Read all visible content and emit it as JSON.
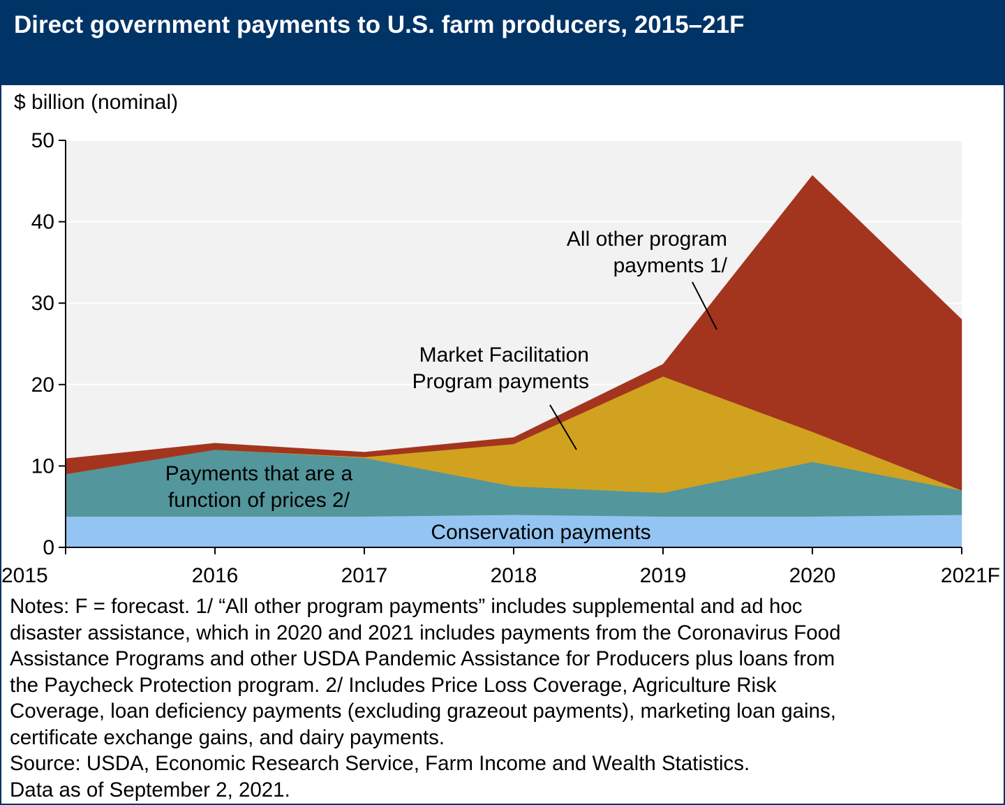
{
  "header": {
    "title": "Direct government payments to U.S. farm producers, 2015–21F"
  },
  "colors": {
    "header_bg": "#003366",
    "plot_bg": "#f2f2f2",
    "conservation": "#94c4f2",
    "price_function": "#53969c",
    "market_facilitation": "#d1a21f",
    "all_other": "#a3351f"
  },
  "chart_data": {
    "type": "area",
    "stacked": true,
    "ylabel": "$ billion (nominal)",
    "ylim": [
      0,
      50
    ],
    "yticks": [
      0,
      10,
      20,
      30,
      40,
      50
    ],
    "categories": [
      "2015",
      "2016",
      "2017",
      "2018",
      "2019",
      "2020",
      "2021F"
    ],
    "grid": "horizontal",
    "series": [
      {
        "name": "Conservation payments",
        "values": [
          3.8,
          3.8,
          3.8,
          4.0,
          3.8,
          3.8,
          4.0
        ]
      },
      {
        "name": "Payments that are a function of prices 2/",
        "values": [
          5.2,
          8.2,
          7.2,
          3.5,
          2.9,
          6.7,
          3.0
        ]
      },
      {
        "name": "Market Facilitation Program payments",
        "values": [
          0,
          0,
          0.1,
          5.2,
          14.3,
          3.7,
          0
        ]
      },
      {
        "name": "All other program payments 1/",
        "values": [
          1.9,
          0.8,
          0.6,
          0.8,
          1.5,
          31.5,
          21.0
        ]
      }
    ],
    "annotations": {
      "all_other": [
        "All other program",
        "payments 1/"
      ],
      "market_facilitation": [
        "Market Facilitation",
        "Program payments"
      ],
      "price_function": [
        "Payments that are a",
        "function of prices 2/"
      ],
      "conservation": [
        "Conservation payments"
      ]
    }
  },
  "notes": {
    "lines": [
      "Notes: F = forecast. 1/ “All other program payments” includes supplemental and ad hoc",
      "disaster assistance, which in 2020 and 2021 includes payments from the Coronavirus Food",
      "Assistance Programs and other USDA Pandemic Assistance for Producers plus loans from",
      "the Paycheck Protection program. 2/ Includes Price Loss Coverage, Agriculture Risk",
      "Coverage, loan deficiency payments (excluding grazeout payments), marketing loan gains,",
      "certificate exchange gains, and dairy payments.",
      "Source: USDA, Economic Research Service, Farm Income and Wealth Statistics.",
      "Data as of September 2, 2021."
    ]
  }
}
